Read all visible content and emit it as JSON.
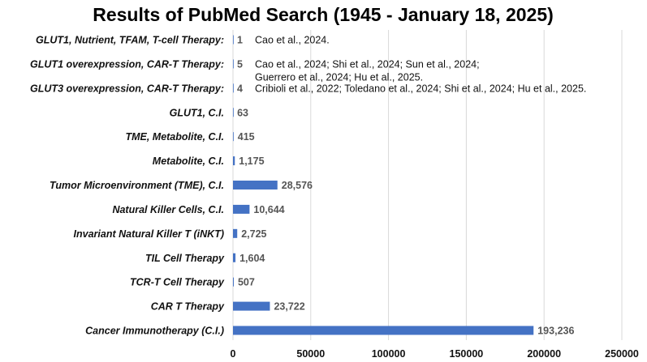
{
  "chart_data": {
    "type": "bar",
    "orientation": "horizontal",
    "title": "Results  of  PubMed Search (1945 - January 18, 2025)",
    "xlim": [
      0,
      250000
    ],
    "xticks": [
      0,
      50000,
      100000,
      150000,
      200000,
      250000
    ],
    "grid": true,
    "bar_color": "#4472c4",
    "categories": [
      "GLUT1, Nutrient, TFAM, T-cell Therapy:",
      "GLUT1 overexpression, CAR-T Therapy:",
      "GLUT3 overexpression, CAR-T Therapy:",
      "GLUT1, C.I.",
      "TME, Metabolite, C.I.",
      "Metabolite, C.I.",
      "Tumor Microenvironment (TME), C.I.",
      "Natural Killer Cells, C.I.",
      "Invariant Natural Killer T (iNKT)",
      "TIL Cell Therapy",
      "TCR-T Cell Therapy",
      "CAR T Therapy",
      "Cancer Immunotherapy (C.I.)"
    ],
    "values": [
      1,
      5,
      4,
      63,
      415,
      1175,
      28576,
      10644,
      2725,
      1604,
      507,
      23722,
      193236
    ],
    "value_labels": [
      "1",
      "5",
      "4",
      "63",
      "415",
      "1,175",
      "28,576",
      "10,644",
      "2,725",
      "1,604",
      "507",
      "23,722",
      "193,236"
    ],
    "annotations": [
      [
        "Cao et al., 2024."
      ],
      [
        "Cao et al., 2024; Shi et al., 2024; Sun et al., 2024;",
        "Guerrero et al., 2024; Hu et al., 2025."
      ],
      [
        "Cribioli et al., 2022; Toledano et al., 2024; Shi et al., 2024; Hu et al., 2025."
      ],
      [],
      [],
      [],
      [],
      [],
      [],
      [],
      [],
      [],
      []
    ]
  }
}
